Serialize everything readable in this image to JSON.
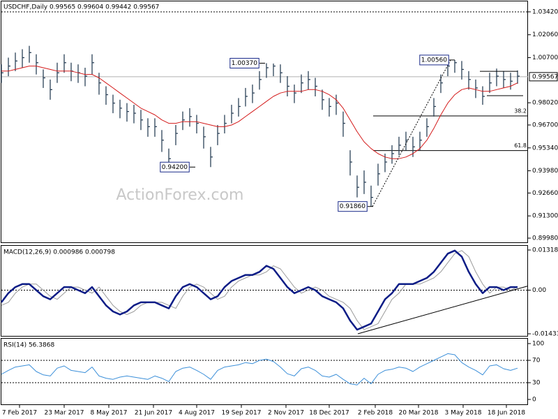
{
  "chart_data": [
    {
      "type": "ohlc",
      "title": "USDCHF,Daily  0.99565 0.99604 0.99442 0.99567",
      "watermark": "ActionForex.com",
      "color": "#2b4158",
      "xlim": [
        0,
        377.5
      ],
      "xticks": [
        {
          "value": 13,
          "label": "7 Feb 2017"
        },
        {
          "value": 45,
          "label": "23 Mar 2017"
        },
        {
          "value": 77,
          "label": "8 May 2017"
        },
        {
          "value": 109,
          "label": "21 Jun 2017"
        },
        {
          "value": 140,
          "label": "4 Aug 2017"
        },
        {
          "value": 172,
          "label": "19 Sep 2017"
        },
        {
          "value": 204,
          "label": "2 Nov 2017"
        },
        {
          "value": 235,
          "label": "18 Dec 2017"
        },
        {
          "value": 268,
          "label": "2 Feb 2018"
        },
        {
          "value": 299,
          "label": "20 Mar 2018"
        },
        {
          "value": 331,
          "label": "3 May 2018"
        },
        {
          "value": 362,
          "label": "18 Jun 2018"
        }
      ],
      "ylim": [
        0.8969,
        1.0404
      ],
      "yticks": [
        {
          "value": 1.0342,
          "label": "1.03420"
        },
        {
          "value": 1.0206,
          "label": "1.02060"
        },
        {
          "value": 1.007,
          "label": "1.00700"
        },
        {
          "value": 0.9802,
          "label": "0.98020"
        },
        {
          "value": 0.967,
          "label": "0.96700"
        },
        {
          "value": 0.9534,
          "label": "0.95340"
        },
        {
          "value": 0.9398,
          "label": "0.93980"
        },
        {
          "value": 0.9266,
          "label": "0.92660"
        },
        {
          "value": 0.913,
          "label": "0.91300"
        },
        {
          "value": 0.8998,
          "label": "0.89980"
        }
      ],
      "last_price": {
        "value": 0.99567,
        "label": "0.99567"
      },
      "x": [
        0,
        5,
        10,
        15,
        20,
        25,
        30,
        35,
        40,
        45,
        50,
        55,
        60,
        65,
        70,
        75,
        80,
        85,
        90,
        95,
        100,
        105,
        110,
        115,
        120,
        125,
        130,
        135,
        140,
        145,
        150,
        155,
        160,
        165,
        170,
        175,
        180,
        185,
        190,
        195,
        200,
        205,
        210,
        215,
        220,
        225,
        230,
        235,
        240,
        245,
        250,
        255,
        260,
        265,
        270,
        275,
        280,
        285,
        290,
        295,
        300,
        305,
        310,
        315,
        320,
        325,
        330,
        335,
        340,
        345,
        350,
        355,
        360,
        365,
        370
      ],
      "high": [
        1.003,
        1.007,
        1.01,
        1.012,
        1.014,
        1.009,
        1.0,
        0.994,
        1.004,
        1.009,
        1.004,
        1.003,
        1.001,
        1.009,
        0.998,
        0.99,
        0.985,
        0.982,
        0.98,
        0.979,
        0.976,
        0.971,
        0.971,
        0.964,
        0.953,
        0.967,
        0.975,
        0.977,
        0.973,
        0.966,
        0.954,
        0.967,
        0.973,
        0.979,
        0.983,
        0.989,
        0.991,
        0.999,
        1.0037,
        1.0035,
        1.003,
        0.996,
        0.991,
        0.997,
        0.999,
        0.995,
        0.988,
        0.983,
        0.985,
        0.975,
        0.952,
        0.937,
        0.94,
        0.931,
        0.944,
        0.95,
        0.955,
        0.96,
        0.963,
        0.96,
        0.963,
        0.971,
        0.983,
        0.997,
        1.005,
        1.0056,
        1.005,
        0.999,
        0.994,
        0.99,
        0.998,
        1.0005,
        0.999,
        0.998,
        0.9994
      ],
      "low": [
        0.992,
        0.996,
        0.999,
        1.001,
        1.004,
        0.997,
        0.989,
        0.982,
        0.992,
        0.998,
        0.993,
        0.992,
        0.99,
        0.997,
        0.985,
        0.979,
        0.974,
        0.971,
        0.969,
        0.968,
        0.964,
        0.96,
        0.96,
        0.951,
        0.942,
        0.955,
        0.964,
        0.966,
        0.962,
        0.953,
        0.942,
        0.955,
        0.962,
        0.968,
        0.972,
        0.978,
        0.98,
        0.988,
        0.995,
        0.996,
        0.992,
        0.984,
        0.98,
        0.986,
        0.988,
        0.984,
        0.976,
        0.972,
        0.973,
        0.96,
        0.937,
        0.924,
        0.926,
        0.9186,
        0.931,
        0.939,
        0.944,
        0.949,
        0.952,
        0.948,
        0.952,
        0.96,
        0.972,
        0.986,
        0.996,
        0.998,
        0.994,
        0.988,
        0.983,
        0.979,
        0.986,
        0.99,
        0.989,
        0.988,
        0.9915
      ],
      "close": [
        0.998,
        1.002,
        1.005,
        1.007,
        1.01,
        1.004,
        0.995,
        0.988,
        0.998,
        1.004,
        0.999,
        0.998,
        0.996,
        1.004,
        0.992,
        0.985,
        0.98,
        0.977,
        0.975,
        0.974,
        0.97,
        0.966,
        0.966,
        0.958,
        0.947,
        0.962,
        0.97,
        0.972,
        0.968,
        0.96,
        0.948,
        0.962,
        0.968,
        0.974,
        0.978,
        0.984,
        0.986,
        0.994,
        1.001,
        1.002,
        0.998,
        0.99,
        0.986,
        0.992,
        0.994,
        0.99,
        0.982,
        0.978,
        0.98,
        0.968,
        0.945,
        0.93,
        0.933,
        0.924,
        0.938,
        0.945,
        0.95,
        0.955,
        0.958,
        0.954,
        0.958,
        0.966,
        0.978,
        0.992,
        1.002,
        1.004,
        1.0,
        0.994,
        0.989,
        0.984,
        0.992,
        0.996,
        0.994,
        0.993,
        0.996
      ],
      "ma": {
        "color": "#d41a1a",
        "values": [
          0.999,
          0.999,
          1.0,
          1.001,
          1.002,
          1.002,
          1.001,
          1.0,
          0.999,
          0.999,
          0.999,
          0.998,
          0.997,
          0.997,
          0.995,
          0.992,
          0.989,
          0.986,
          0.983,
          0.98,
          0.977,
          0.975,
          0.973,
          0.97,
          0.968,
          0.968,
          0.969,
          0.969,
          0.969,
          0.968,
          0.967,
          0.966,
          0.966,
          0.967,
          0.969,
          0.972,
          0.975,
          0.978,
          0.981,
          0.984,
          0.986,
          0.987,
          0.987,
          0.987,
          0.988,
          0.988,
          0.987,
          0.985,
          0.982,
          0.977,
          0.97,
          0.963,
          0.957,
          0.953,
          0.95,
          0.948,
          0.947,
          0.947,
          0.948,
          0.95,
          0.953,
          0.958,
          0.965,
          0.973,
          0.98,
          0.985,
          0.988,
          0.989,
          0.988,
          0.987,
          0.987,
          0.988,
          0.989,
          0.99,
          0.992
        ]
      },
      "annotations": [
        {
          "x": 185,
          "value": 1.0037,
          "label": "1.00370"
        },
        {
          "x": 135,
          "value": 0.942,
          "label": "0.94200"
        },
        {
          "x": 262.5,
          "value": 0.9186,
          "label": "0.91860"
        },
        {
          "x": 321,
          "value": 1.0056,
          "label": "1.00560"
        }
      ],
      "fib_levels": [
        {
          "x": 266.5,
          "value": 0.9724,
          "label": "38.2"
        },
        {
          "x": 266.5,
          "value": 0.9518,
          "label": "61.8"
        }
      ],
      "trendlines": [
        {
          "x": [
            266,
            322
          ],
          "y": [
            0.9186,
            1.0056
          ],
          "style": "dotted"
        },
        {
          "x": [
            343,
            370
          ],
          "y": [
            0.9989,
            0.9989
          ],
          "style": "solid"
        },
        {
          "x": [
            348,
            374
          ],
          "y": [
            0.9844,
            0.9844
          ],
          "style": "solid"
        }
      ]
    },
    {
      "type": "line",
      "title": "MACD(12,26,9) 0.000986 0.000798",
      "ylim": [
        -0.01526,
        0.01456
      ],
      "yticks": [
        {
          "value": 0.013184,
          "label": "0.013184"
        },
        {
          "value": 0,
          "label": "0.00"
        },
        {
          "value": -0.014339,
          "label": "-0.014339"
        }
      ],
      "zero_line": true,
      "series": [
        {
          "color": "#0b1c86",
          "width": 2.5,
          "values": [
            -0.004,
            -0.001,
            0.001,
            0.002,
            0.002,
            0,
            -0.002,
            -0.003,
            -0.001,
            0.001,
            0.001,
            0,
            -0.001,
            0.001,
            -0.002,
            -0.005,
            -0.007,
            -0.008,
            -0.007,
            -0.005,
            -0.004,
            -0.004,
            -0.004,
            -0.005,
            -0.006,
            -0.002,
            0.001,
            0.002,
            0.001,
            -0.001,
            -0.003,
            -0.002,
            0.001,
            0.003,
            0.004,
            0.005,
            0.005,
            0.006,
            0.008,
            0.007,
            0.004,
            0.001,
            -0.001,
            0,
            0.001,
            0,
            -0.002,
            -0.003,
            -0.004,
            -0.006,
            -0.01,
            -0.013,
            -0.012,
            -0.011,
            -0.007,
            -0.003,
            -0.001,
            0.002,
            0.002,
            0.002,
            0.003,
            0.004,
            0.006,
            0.009,
            0.012,
            0.013,
            0.011,
            0.006,
            0.002,
            -0.001,
            0.001,
            0.001,
            0,
            0.001,
            0.001
          ]
        },
        {
          "color": "#9a9a9a",
          "width": 1,
          "values": [
            -0.005,
            -0.004,
            -0.001,
            0.001,
            0.002,
            0.002,
            0,
            -0.002,
            -0.003,
            -0.001,
            0.001,
            0.001,
            0,
            -0.001,
            0.001,
            -0.002,
            -0.005,
            -0.007,
            -0.008,
            -0.007,
            -0.005,
            -0.004,
            -0.004,
            -0.004,
            -0.005,
            -0.006,
            -0.002,
            0.001,
            0.002,
            0.001,
            -0.001,
            -0.003,
            -0.002,
            0.001,
            0.003,
            0.004,
            0.005,
            0.005,
            0.006,
            0.008,
            0.007,
            0.004,
            0.001,
            -0.001,
            0,
            0.001,
            0,
            -0.002,
            -0.003,
            -0.004,
            -0.006,
            -0.01,
            -0.013,
            -0.012,
            -0.011,
            -0.007,
            -0.003,
            -0.001,
            0.002,
            0.002,
            0.002,
            0.003,
            0.004,
            0.006,
            0.009,
            0.012,
            0.013,
            0.011,
            0.006,
            0.002,
            -0.001,
            0.001,
            0.001,
            0,
            0.001
          ]
        }
      ],
      "trendlines": [
        {
          "x": [
            255.5,
            377.5
          ],
          "y": [
            -0.01434,
            0.00137
          ],
          "style": "solid"
        }
      ]
    },
    {
      "type": "line",
      "title": "RSI(14) 56.3868",
      "ylim": [
        -10,
        108.75
      ],
      "yticks": [
        100,
        70,
        30,
        0
      ],
      "levels": [
        70,
        30
      ],
      "series": [
        {
          "color": "#3b8fd9",
          "width": 1,
          "values": [
            45,
            52,
            58,
            60,
            62,
            50,
            44,
            42,
            56,
            60,
            52,
            50,
            48,
            58,
            42,
            38,
            36,
            40,
            42,
            40,
            38,
            36,
            42,
            38,
            32,
            50,
            56,
            58,
            52,
            45,
            36,
            52,
            58,
            60,
            62,
            66,
            64,
            70,
            72,
            68,
            58,
            46,
            42,
            55,
            58,
            52,
            42,
            40,
            45,
            36,
            28,
            26,
            38,
            28,
            45,
            52,
            54,
            58,
            56,
            50,
            58,
            64,
            70,
            76,
            82,
            80,
            66,
            58,
            52,
            44,
            60,
            62,
            55,
            52,
            56
          ]
        }
      ]
    }
  ]
}
